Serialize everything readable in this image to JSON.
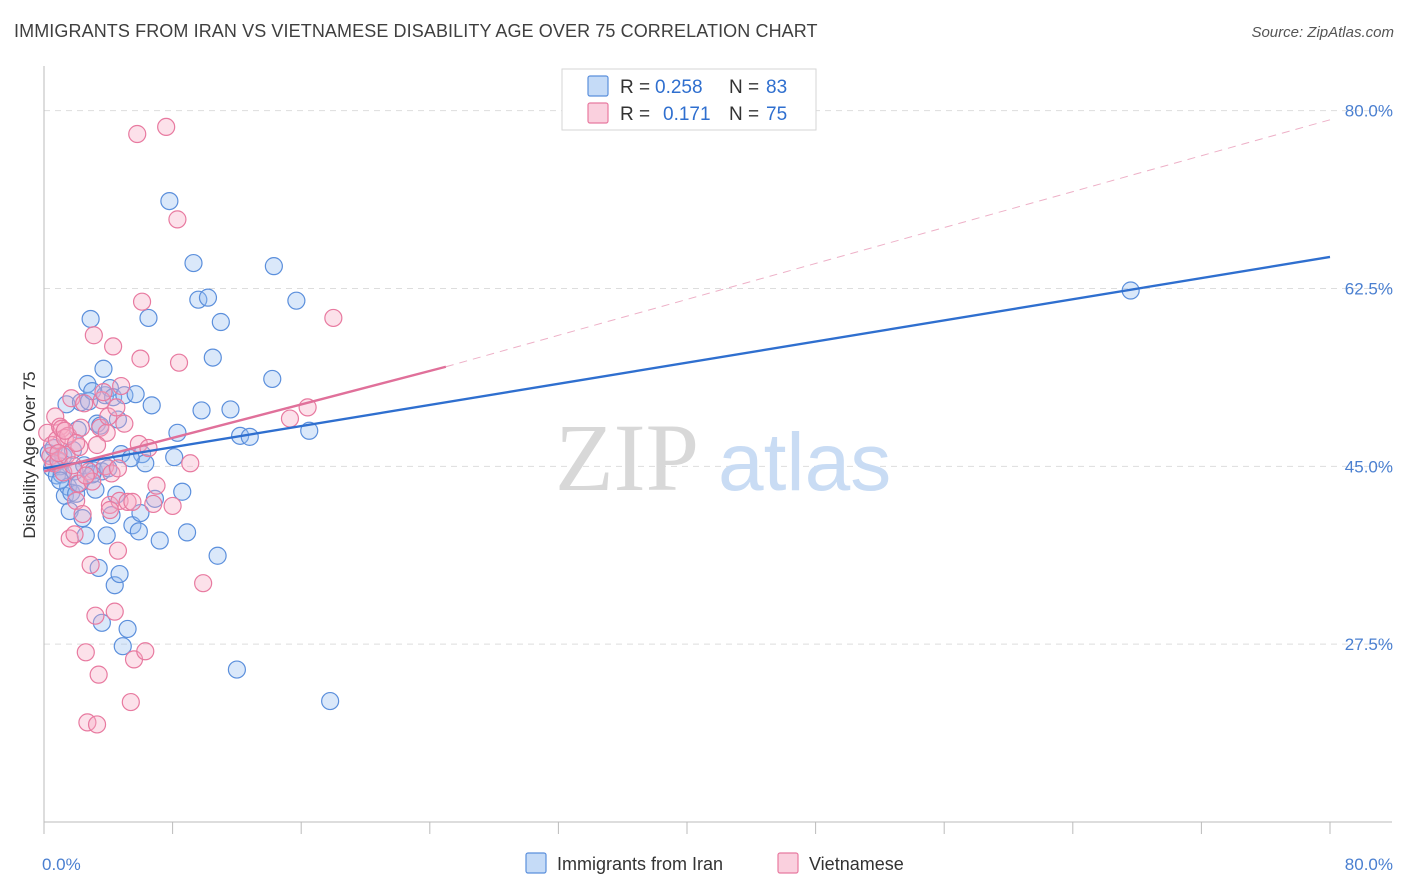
{
  "title": "IMMIGRANTS FROM IRAN VS VIETNAMESE DISABILITY AGE OVER 75 CORRELATION CHART",
  "source": "Source: ZipAtlas.com",
  "watermark": {
    "zip": "ZIP",
    "atlas": "atlas"
  },
  "colors": {
    "blue": "#5b8fdc",
    "blue_fill": "rgba(150,190,240,0.35)",
    "blue_line": "#2f6fcf",
    "pink": "#e87aa0",
    "pink_fill": "rgba(245,170,195,0.35)",
    "pink_line": "#e0709a",
    "tick_text": "#4a7fd0",
    "grid": "#dddddd"
  },
  "legend": {
    "rows": [
      {
        "r_label": "R =",
        "r_value": "0.258",
        "n_label": "N =",
        "n_value": "83",
        "series": "blue"
      },
      {
        "r_label": "R =",
        "r_value": "0.171",
        "n_label": "N =",
        "n_value": "75",
        "series": "pink"
      }
    ]
  },
  "chart_data": {
    "type": "scatter",
    "title": "IMMIGRANTS FROM IRAN VS VIETNAMESE DISABILITY AGE OVER 75 CORRELATION CHART",
    "xlabel": "",
    "ylabel": "Disability Age Over 75",
    "xlim": [
      0,
      80
    ],
    "ylim": [
      10,
      84
    ],
    "x_tick_labels": [
      {
        "value": 0,
        "label": "0.0%"
      },
      {
        "value": 80,
        "label": "80.0%"
      }
    ],
    "y_tick_labels": [
      {
        "value": 27.5,
        "label": "27.5%"
      },
      {
        "value": 45.0,
        "label": "45.0%"
      },
      {
        "value": 62.5,
        "label": "62.5%"
      },
      {
        "value": 80.0,
        "label": "80.0%"
      }
    ],
    "x_minor_ticks": [
      0,
      8,
      16,
      24,
      32,
      40,
      48,
      56,
      64,
      72,
      80
    ],
    "grid": true,
    "legend_position": "bottom",
    "series": [
      {
        "name": "Immigrants from Iran",
        "color": "blue",
        "R": 0.258,
        "N": 83,
        "trend": {
          "x0": 0,
          "y0": 44.8,
          "x1": 80,
          "y1": 65.6,
          "dashed_extension": false
        },
        "points": [
          [
            0.3,
            46.3
          ],
          [
            0.5,
            44.8
          ],
          [
            0.6,
            46.8
          ],
          [
            0.8,
            44.1
          ],
          [
            0.9,
            45.5
          ],
          [
            1.0,
            45.0
          ],
          [
            1.1,
            44.2
          ],
          [
            1.2,
            46.0
          ],
          [
            1.3,
            42.1
          ],
          [
            1.4,
            51.1
          ],
          [
            1.5,
            43.0
          ],
          [
            1.6,
            40.6
          ],
          [
            1.7,
            42.4
          ],
          [
            1.8,
            46.6
          ],
          [
            1.9,
            44.5
          ],
          [
            2.0,
            42.3
          ],
          [
            2.1,
            48.6
          ],
          [
            2.2,
            43.3
          ],
          [
            2.3,
            51.3
          ],
          [
            2.5,
            45.1
          ],
          [
            2.6,
            38.2
          ],
          [
            2.7,
            53.1
          ],
          [
            2.8,
            51.4
          ],
          [
            2.9,
            59.5
          ],
          [
            3.0,
            52.4
          ],
          [
            3.1,
            44.6
          ],
          [
            3.2,
            42.7
          ],
          [
            3.3,
            49.2
          ],
          [
            3.4,
            35.0
          ],
          [
            3.5,
            49.0
          ],
          [
            3.6,
            44.5
          ],
          [
            3.7,
            54.6
          ],
          [
            3.8,
            52.0
          ],
          [
            3.9,
            38.2
          ],
          [
            4.0,
            44.8
          ],
          [
            4.1,
            52.7
          ],
          [
            4.2,
            40.2
          ],
          [
            4.3,
            51.8
          ],
          [
            4.4,
            33.3
          ],
          [
            4.5,
            42.2
          ],
          [
            4.6,
            49.6
          ],
          [
            4.7,
            34.4
          ],
          [
            4.8,
            46.2
          ],
          [
            5.0,
            52.0
          ],
          [
            5.2,
            29.0
          ],
          [
            5.5,
            39.2
          ],
          [
            5.7,
            52.1
          ],
          [
            5.9,
            38.6
          ],
          [
            6.1,
            46.2
          ],
          [
            6.3,
            45.3
          ],
          [
            6.5,
            59.6
          ],
          [
            6.7,
            51.0
          ],
          [
            6.9,
            41.8
          ],
          [
            7.2,
            37.7
          ],
          [
            7.8,
            71.1
          ],
          [
            8.1,
            45.9
          ],
          [
            8.3,
            48.3
          ],
          [
            8.6,
            42.5
          ],
          [
            8.9,
            38.5
          ],
          [
            9.3,
            65.0
          ],
          [
            9.6,
            61.4
          ],
          [
            9.8,
            50.5
          ],
          [
            10.2,
            61.6
          ],
          [
            10.5,
            55.7
          ],
          [
            10.8,
            36.2
          ],
          [
            11.0,
            59.2
          ],
          [
            11.6,
            50.6
          ],
          [
            12.0,
            25.0
          ],
          [
            12.2,
            48.0
          ],
          [
            12.8,
            47.9
          ],
          [
            14.2,
            53.6
          ],
          [
            14.3,
            64.7
          ],
          [
            15.7,
            61.3
          ],
          [
            16.5,
            48.5
          ],
          [
            17.8,
            21.9
          ],
          [
            67.6,
            62.3
          ],
          [
            3.0,
            44.2
          ],
          [
            2.4,
            39.9
          ],
          [
            1.0,
            43.6
          ],
          [
            5.4,
            45.8
          ],
          [
            6.0,
            40.4
          ],
          [
            3.6,
            29.6
          ],
          [
            4.9,
            27.3
          ]
        ]
      },
      {
        "name": "Vietnamese",
        "color": "pink",
        "R": 0.171,
        "N": 75,
        "trend": {
          "x0": 0,
          "y0": 44.5,
          "x1": 25,
          "y1": 54.8,
          "dash_x1": 80,
          "dash_y1": 79.1,
          "dashed_extension": true
        },
        "points": [
          [
            0.2,
            48.3
          ],
          [
            0.4,
            46.0
          ],
          [
            0.5,
            47.1
          ],
          [
            0.6,
            45.3
          ],
          [
            0.7,
            49.9
          ],
          [
            0.8,
            47.6
          ],
          [
            0.9,
            45.6
          ],
          [
            1.0,
            48.9
          ],
          [
            1.1,
            48.7
          ],
          [
            1.2,
            44.4
          ],
          [
            1.3,
            47.8
          ],
          [
            1.4,
            46.1
          ],
          [
            1.5,
            48.0
          ],
          [
            1.6,
            37.9
          ],
          [
            1.7,
            51.7
          ],
          [
            1.8,
            45.1
          ],
          [
            1.9,
            38.3
          ],
          [
            2.0,
            41.6
          ],
          [
            2.1,
            43.3
          ],
          [
            2.2,
            46.9
          ],
          [
            2.3,
            48.8
          ],
          [
            2.4,
            40.3
          ],
          [
            2.5,
            51.2
          ],
          [
            2.6,
            26.7
          ],
          [
            2.7,
            19.8
          ],
          [
            2.8,
            44.5
          ],
          [
            2.9,
            35.3
          ],
          [
            3.1,
            57.9
          ],
          [
            3.2,
            30.3
          ],
          [
            3.3,
            19.6
          ],
          [
            3.4,
            24.5
          ],
          [
            3.5,
            48.8
          ],
          [
            3.6,
            51.5
          ],
          [
            3.7,
            52.3
          ],
          [
            3.8,
            45.0
          ],
          [
            3.9,
            48.3
          ],
          [
            4.0,
            49.9
          ],
          [
            4.1,
            41.2
          ],
          [
            4.2,
            44.3
          ],
          [
            4.3,
            56.8
          ],
          [
            4.4,
            30.7
          ],
          [
            4.5,
            50.8
          ],
          [
            4.6,
            36.7
          ],
          [
            4.7,
            41.6
          ],
          [
            4.8,
            52.9
          ],
          [
            5.0,
            49.2
          ],
          [
            5.2,
            41.5
          ],
          [
            5.4,
            21.8
          ],
          [
            5.6,
            26.0
          ],
          [
            5.8,
            77.7
          ],
          [
            5.9,
            47.2
          ],
          [
            6.0,
            55.6
          ],
          [
            6.1,
            61.2
          ],
          [
            6.3,
            26.8
          ],
          [
            6.5,
            46.8
          ],
          [
            7.0,
            43.1
          ],
          [
            7.6,
            78.4
          ],
          [
            8.0,
            41.1
          ],
          [
            8.3,
            69.3
          ],
          [
            8.4,
            55.2
          ],
          [
            9.1,
            45.3
          ],
          [
            9.9,
            33.5
          ],
          [
            16.4,
            50.8
          ],
          [
            18.0,
            59.6
          ],
          [
            15.3,
            49.7
          ],
          [
            3.0,
            43.5
          ],
          [
            2.0,
            47.3
          ],
          [
            1.3,
            48.5
          ],
          [
            4.6,
            44.8
          ],
          [
            5.5,
            41.5
          ],
          [
            6.8,
            41.3
          ],
          [
            2.6,
            44.1
          ],
          [
            3.3,
            47.1
          ],
          [
            0.9,
            46.3
          ],
          [
            4.1,
            40.7
          ]
        ]
      }
    ]
  }
}
